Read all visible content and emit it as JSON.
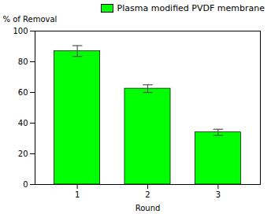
{
  "chart_data": {
    "type": "bar",
    "x": [
      1,
      2,
      3
    ],
    "series": [
      {
        "name": "Plasma modified PVDF membrane",
        "color": "#00FF00",
        "values": [
          87.0,
          62.5,
          34.0
        ],
        "errors": [
          3.5,
          2.5,
          2.0
        ]
      }
    ],
    "xlabel": "Round",
    "ylabel": "% of Removal",
    "xlim": [
      0.4,
      3.6
    ],
    "xticks": [
      1,
      2,
      3
    ],
    "ylim": [
      0,
      100
    ],
    "yticks": [
      0,
      20,
      40,
      60,
      80,
      100
    ],
    "grid": false,
    "legend": "upper right"
  }
}
